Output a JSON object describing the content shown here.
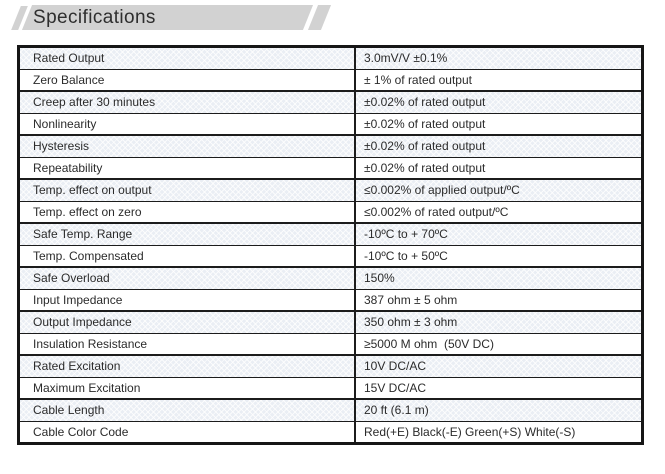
{
  "header": {
    "title": "Specifications",
    "banner_color": "#d2d2d2",
    "text_color": "#2e2e2e"
  },
  "table": {
    "columns": [
      "parameter",
      "value"
    ],
    "border_color": "#1c1c1c",
    "alt_row_color": "#eaeef4",
    "rows": [
      {
        "label": "Rated Output",
        "value": "3.0mV/V ±0.1%"
      },
      {
        "label": "Zero Balance",
        "value": "± 1% of rated output"
      },
      {
        "label": "Creep after 30 minutes",
        "value": "±0.02% of rated output"
      },
      {
        "label": "Nonlinearity",
        "value": "±0.02% of rated output"
      },
      {
        "label": "Hysteresis",
        "value": "±0.02% of rated output"
      },
      {
        "label": "Repeatability",
        "value": "±0.02% of rated output"
      },
      {
        "label": "Temp. effect on output",
        "value": "≤0.002% of applied output/ºC"
      },
      {
        "label": "Temp. effect on zero",
        "value": "≤0.002% of rated output/ºC"
      },
      {
        "label": "Safe Temp. Range",
        "value": "-10ºC to + 70ºC"
      },
      {
        "label": "Temp. Compensated",
        "value": "-10ºC to + 50ºC"
      },
      {
        "label": "Safe Overload",
        "value": "150%"
      },
      {
        "label": "Input Impedance",
        "value": "387 ohm ± 5 ohm"
      },
      {
        "label": "Output Impedance",
        "value": "350 ohm ± 3 ohm"
      },
      {
        "label": "Insulation Resistance",
        "value": "≥5000 M ohm  (50V DC)"
      },
      {
        "label": "Rated Excitation",
        "value": "10V DC/AC"
      },
      {
        "label": "Maximum Excitation",
        "value": "15V DC/AC"
      },
      {
        "label": "Cable Length",
        "value": "20 ft (6.1 m)"
      },
      {
        "label": "Cable Color Code",
        "value": "Red(+E) Black(-E) Green(+S) White(-S)"
      }
    ]
  }
}
